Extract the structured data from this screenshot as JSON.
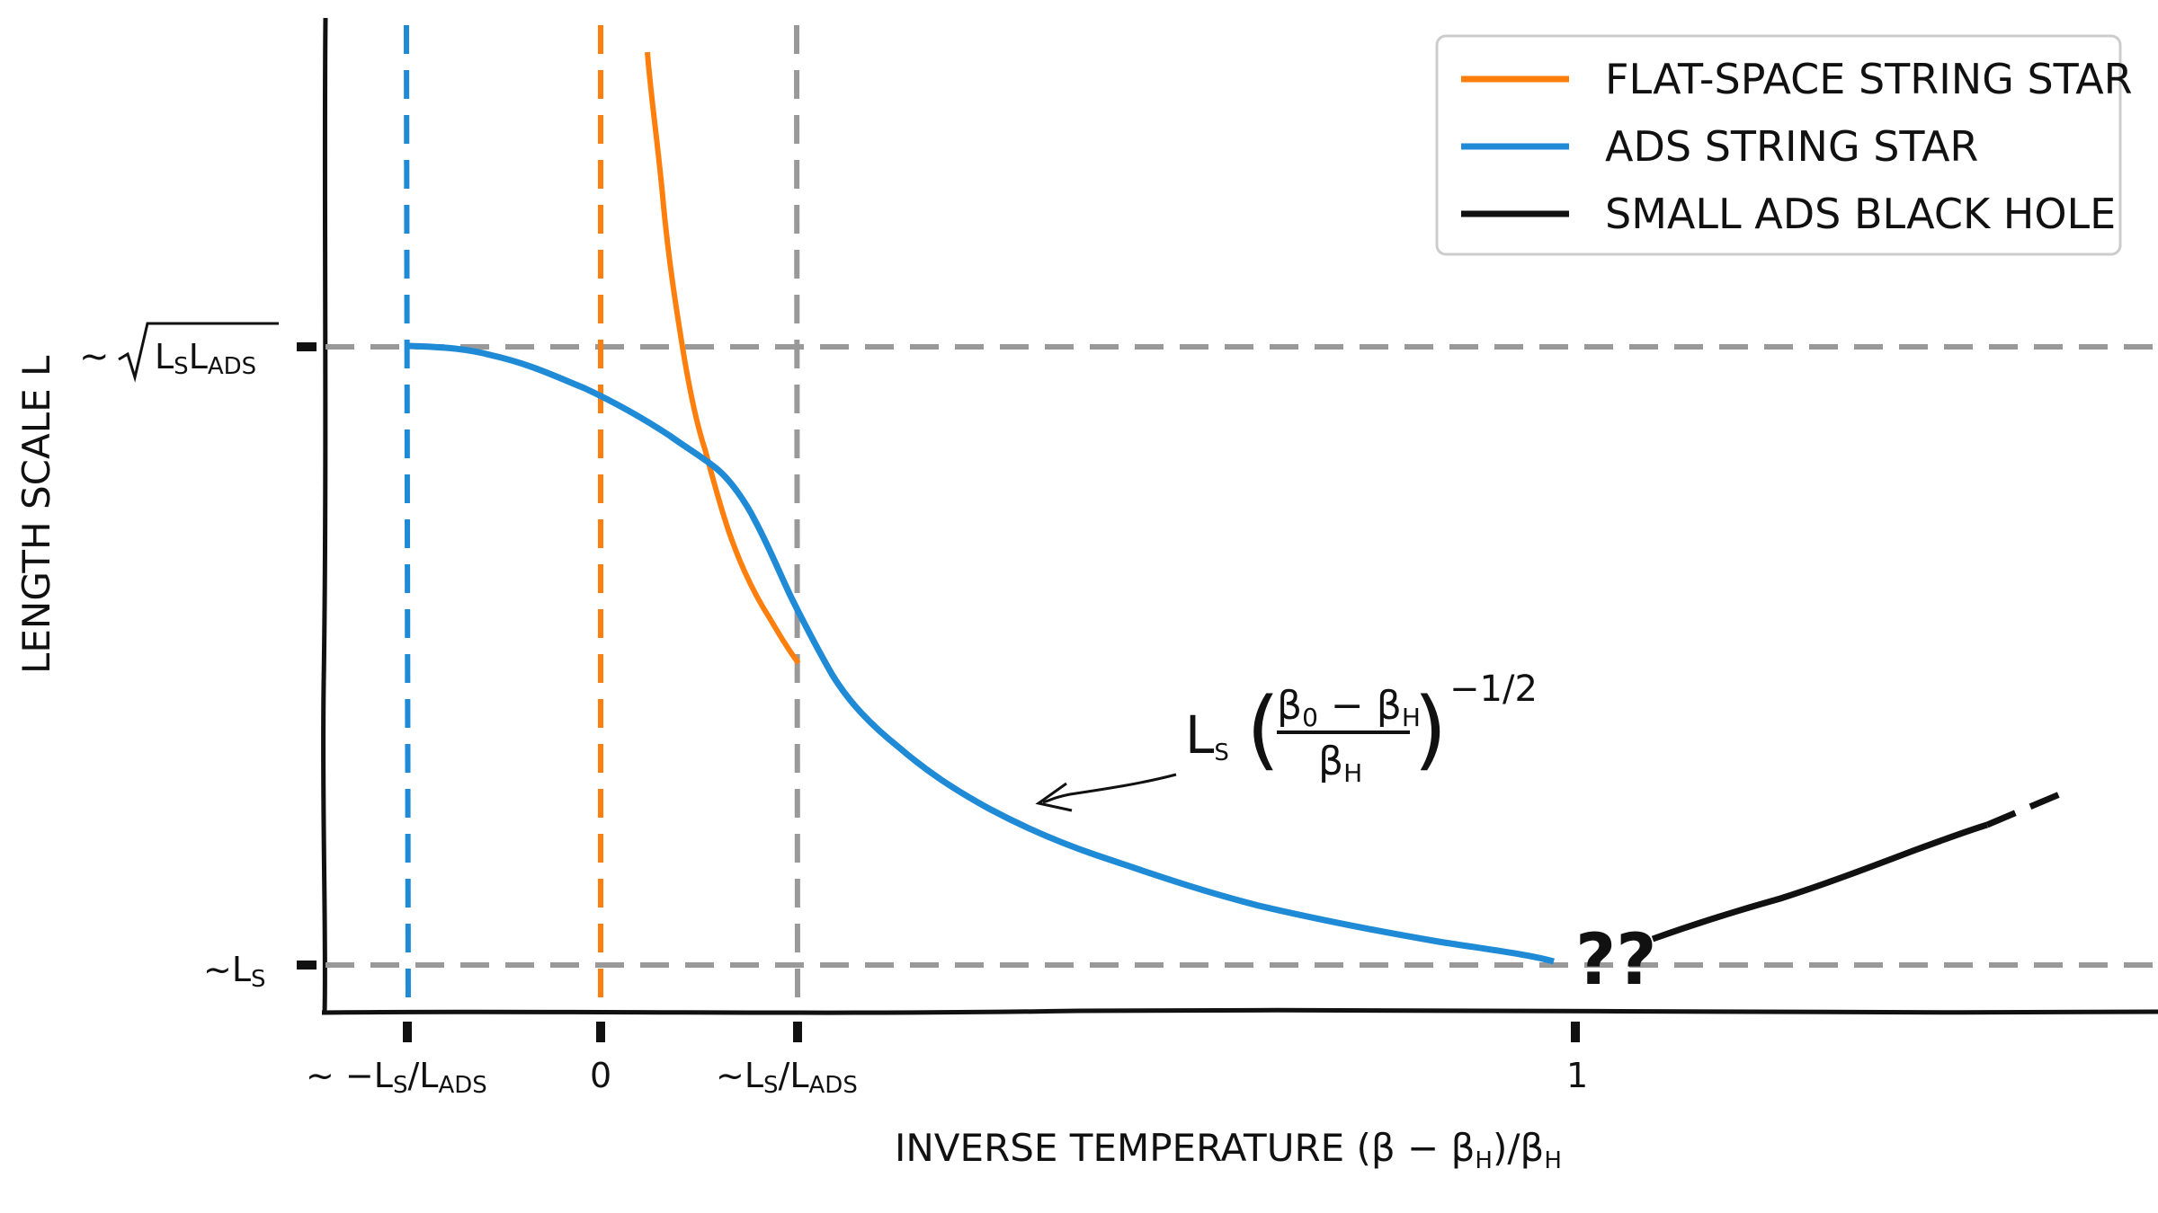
{
  "chart_data": {
    "type": "line",
    "xlabel": "INVERSE TEMPERATURE (β − βH)/βH",
    "ylabel": "LENGTH SCALE L",
    "x_ticks": [
      "~ −LS/LADS",
      "0",
      "~LS/LADS",
      "1"
    ],
    "y_ticks": [
      "~LS",
      "~√(LS LADS)"
    ],
    "grid": false,
    "legend_position": "top-right",
    "series": [
      {
        "name": "FLAT-SPACE STRING STAR",
        "color": "#ff7f0e",
        "description_points": [
          [
            0.23,
            1.45
          ],
          [
            0.3,
            1.0
          ],
          [
            0.4,
            0.55
          ],
          [
            0.5,
            0.41
          ]
        ]
      },
      {
        "name": "ADS STRING STAR",
        "color": "#1f8ad6",
        "description_points": [
          [
            -0.62,
            1.0
          ],
          [
            -0.4,
            0.975
          ],
          [
            -0.2,
            0.93
          ],
          [
            0.0,
            0.86
          ],
          [
            0.15,
            0.8
          ],
          [
            0.3,
            0.74
          ],
          [
            0.4,
            0.68
          ],
          [
            0.55,
            0.58
          ],
          [
            0.7,
            0.48
          ],
          [
            1.0,
            0.33
          ],
          [
            1.5,
            0.19
          ],
          [
            2.2,
            0.1
          ],
          [
            3.3,
            0.04
          ],
          [
            3.95,
            0.0
          ]
        ]
      },
      {
        "name": "SMALL ADS BLACK HOLE",
        "color": "#111111",
        "description_points": [
          [
            4.3,
            0.03
          ],
          [
            4.8,
            0.09
          ],
          [
            5.4,
            0.16
          ],
          [
            5.9,
            0.22
          ]
        ]
      }
    ],
    "vlines": [
      {
        "label": "~ −LS/LADS",
        "color": "#1f8ad6"
      },
      {
        "label": "0",
        "color": "#ff7f0e"
      },
      {
        "label": "~LS/LADS",
        "color": "#999999"
      }
    ],
    "hlines": [
      {
        "label": "~√(LS LADS)",
        "color": "#999999"
      },
      {
        "label": "~LS",
        "color": "#999999"
      }
    ],
    "annotations": [
      {
        "text": "LS ((β0 − βH)/βH)^(−1/2)"
      },
      {
        "text": "??"
      }
    ]
  },
  "labels": {
    "xlabel_main": "INVERSE TEMPERATURE (β − β",
    "xlabel_sub": "H",
    "xlabel_mid": ")/β",
    "xlabel_sub2": "H",
    "ylabel": "LENGTH SCALE L",
    "legend": {
      "flat": "FLAT-SPACE STRING STAR",
      "ads": "ADS STRING STAR",
      "bh": "SMALL ADS BLACK HOLE"
    },
    "question": "??"
  }
}
